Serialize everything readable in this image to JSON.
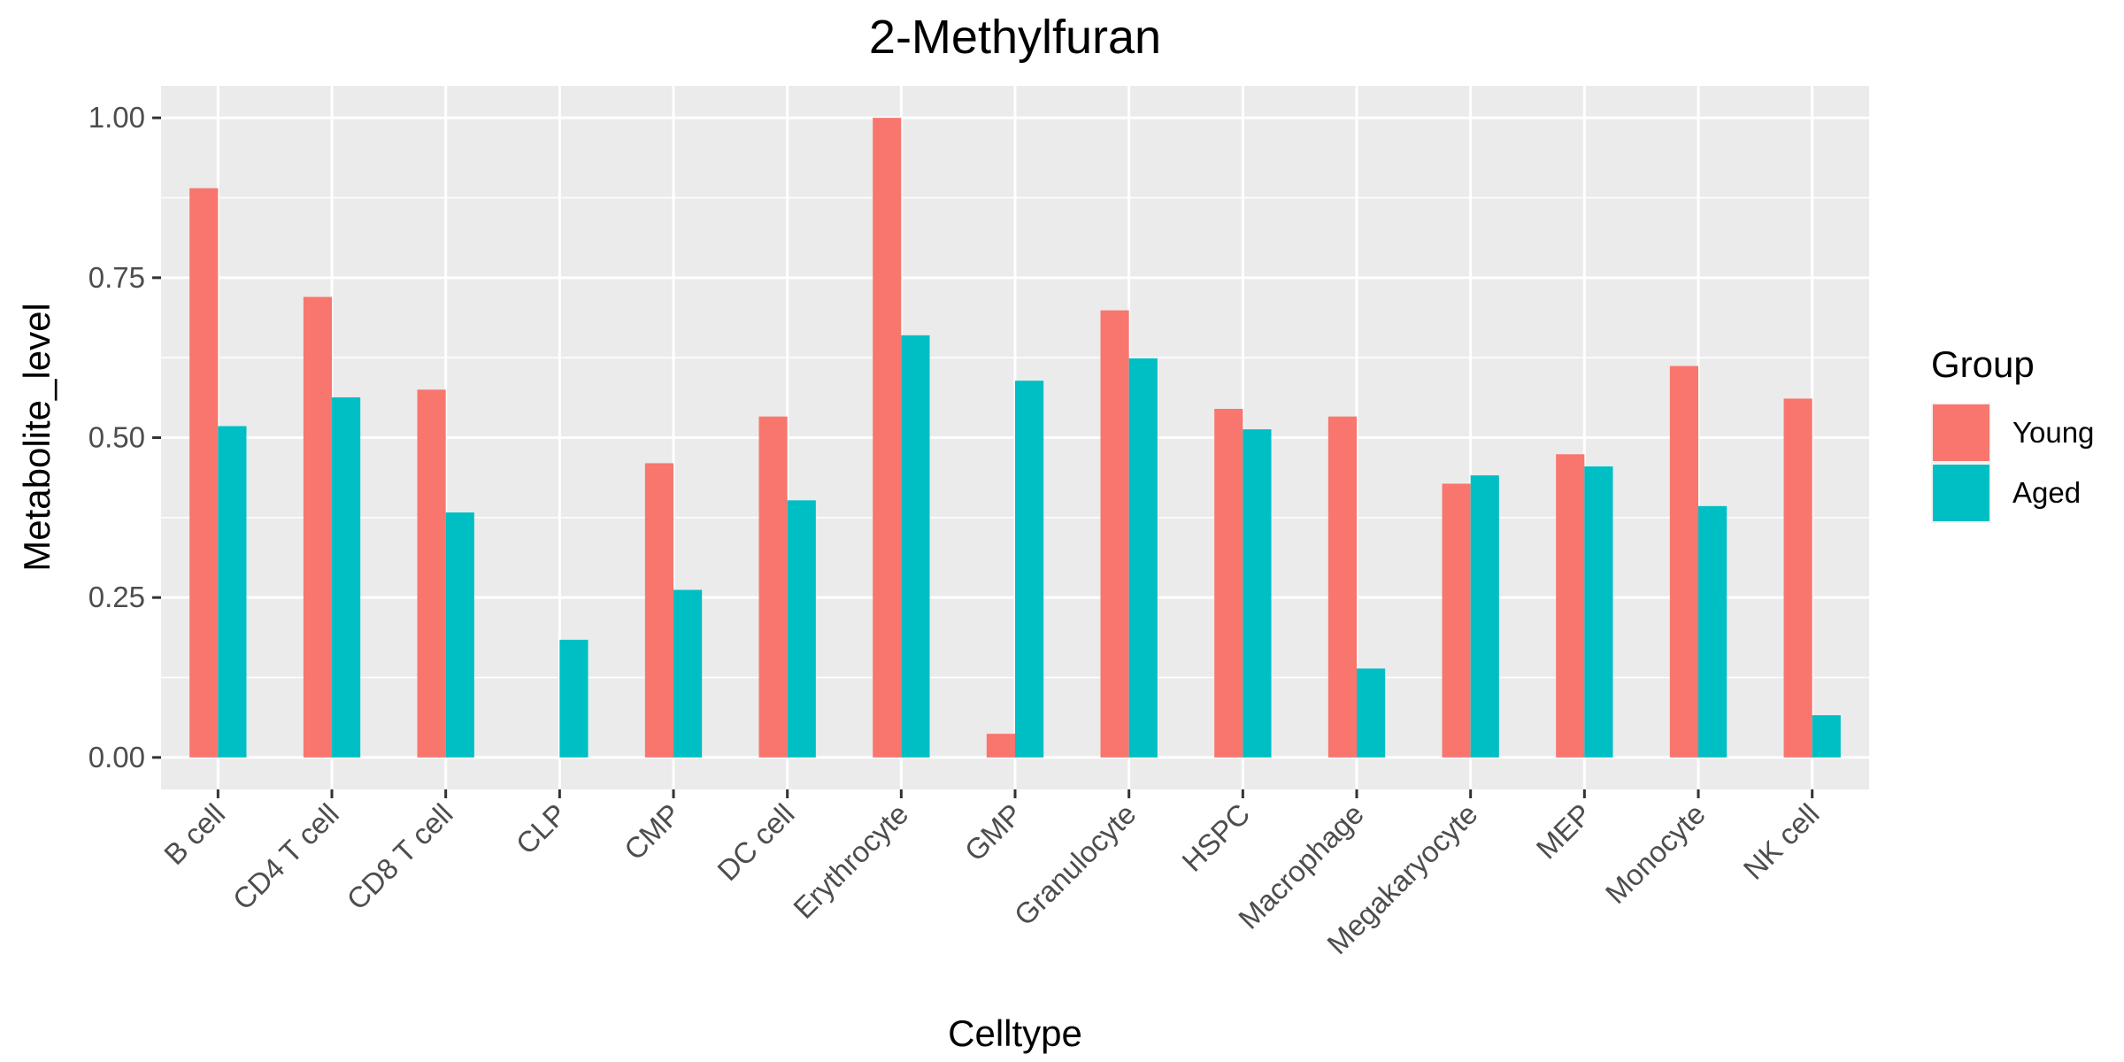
{
  "chart_data": {
    "type": "bar",
    "title": "2-Methylfuran",
    "xlabel": "Celltype",
    "ylabel": "Metabolite_level",
    "ylim": [
      -0.05,
      1.05
    ],
    "yticks": [
      0.0,
      0.25,
      0.5,
      0.75,
      1.0
    ],
    "ytick_labels": [
      "0.00",
      "0.25",
      "0.50",
      "0.75",
      "1.00"
    ],
    "grid": true,
    "legend": {
      "title": "Group",
      "placement": "right"
    },
    "categories": [
      "B cell",
      "CD4 T cell",
      "CD8 T cell",
      "CLP",
      "CMP",
      "DC cell",
      "Erythrocyte",
      "GMP",
      "Granulocyte",
      "HSPC",
      "Macrophage",
      "Megakaryocyte",
      "MEP",
      "Monocyte",
      "NK cell"
    ],
    "series": [
      {
        "name": "Young",
        "color": "#F8766D",
        "values": [
          0.89,
          0.72,
          0.575,
          0.0,
          0.46,
          0.533,
          1.0,
          0.037,
          0.699,
          0.545,
          0.533,
          0.428,
          0.474,
          0.612,
          0.561
        ]
      },
      {
        "name": "Aged",
        "color": "#00BFC4",
        "values": [
          0.518,
          0.563,
          0.383,
          0.184,
          0.262,
          0.402,
          0.66,
          0.589,
          0.624,
          0.513,
          0.139,
          0.441,
          0.455,
          0.393,
          0.066
        ]
      }
    ]
  }
}
